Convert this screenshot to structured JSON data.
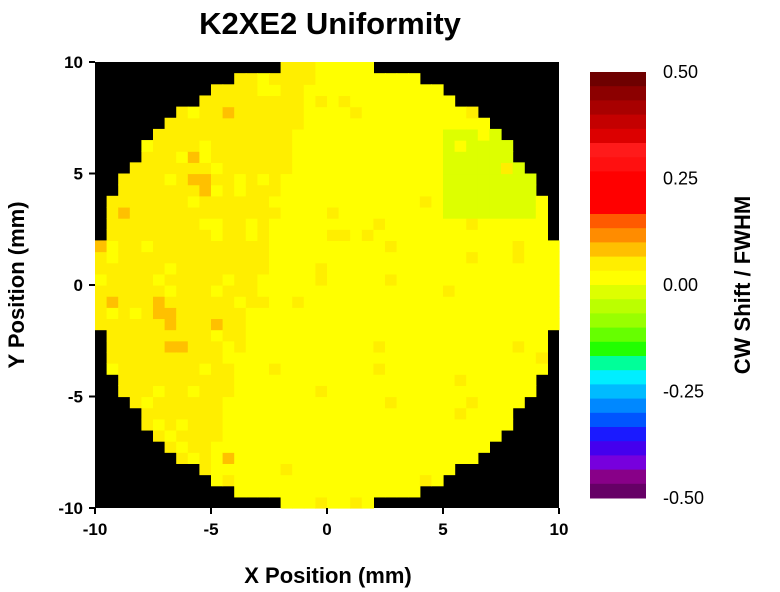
{
  "chart_data": {
    "type": "heatmap",
    "title": "K2XE2 Uniformity",
    "xlabel": "X Position (mm)",
    "ylabel": "Y Position (mm)",
    "xlim": [
      -10,
      10
    ],
    "ylim": [
      -10,
      10
    ],
    "x_ticks": [
      "-10",
      "-5",
      "0",
      "5",
      "10"
    ],
    "y_ticks": [
      "10",
      "5",
      "0",
      "-5",
      "-10"
    ],
    "background": "#000000",
    "grid": false,
    "wafer_radius_mm": 10,
    "grid_cells": 40,
    "colorbar": {
      "label": "CW Shift / FWHM",
      "range": [
        -0.5,
        0.5
      ],
      "tick_labels": [
        "0.50",
        "0.25",
        "0.00",
        "-0.25",
        "-0.50"
      ],
      "colors_top_to_bottom": [
        "#6e0000",
        "#8c0000",
        "#a80000",
        "#c40000",
        "#dc0000",
        "#ff1a1a",
        "#ff1010",
        "#ff0000",
        "#ff0000",
        "#ff0000",
        "#ff5a00",
        "#ff8c00",
        "#ffc000",
        "#ffee00",
        "#ffff00",
        "#ddff00",
        "#bbff00",
        "#99ff00",
        "#66ff00",
        "#22ff00",
        "#00ff99",
        "#00eeff",
        "#00bbff",
        "#0088ff",
        "#0055ff",
        "#1a1aff",
        "#4400ee",
        "#7700dd",
        "#880088",
        "#660066"
      ]
    },
    "value_regions": [
      {
        "region": "left lobe (x < -3)",
        "value": 0.06,
        "color": "#ff8c00"
      },
      {
        "region": "centre band",
        "value": 0.03,
        "color": "#ffc000"
      },
      {
        "region": "right half",
        "value": 0.005,
        "color": "#ffff00"
      },
      {
        "region": "upper-right patch (x 5..9, y 3..7)",
        "value": -0.03,
        "color": "#ccff00"
      },
      {
        "region": "isolated hot pixels on left",
        "value": 0.09,
        "color": "#ff5a00"
      }
    ]
  }
}
